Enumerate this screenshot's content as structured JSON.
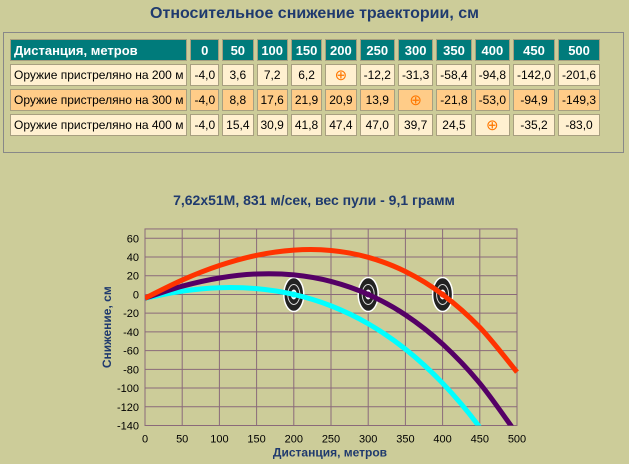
{
  "title": "Относительное снижение траектории, см",
  "table": {
    "header": "Дистанция, метров",
    "distances": [
      "0",
      "50",
      "100",
      "150",
      "200",
      "250",
      "300",
      "350",
      "400",
      "450",
      "500"
    ],
    "rows": [
      {
        "label": "Оружие пристреляно на 200 м",
        "values": [
          "-4,0",
          "3,6",
          "7,2",
          "6,2",
          "⊕",
          "-12,2",
          "-31,3",
          "-58,4",
          "-94,8",
          "-142,0",
          "-201,6"
        ]
      },
      {
        "label": "Оружие пристреляно на 300 м",
        "values": [
          "-4,0",
          "8,8",
          "17,6",
          "21,9",
          "20,9",
          "13,9",
          "⊕",
          "-21,8",
          "-53,0",
          "-94,9",
          "-149,3"
        ]
      },
      {
        "label": "Оружие пристреляно на 400 м",
        "values": [
          "-4,0",
          "15,4",
          "30,9",
          "41,8",
          "47,4",
          "47,0",
          "39,7",
          "24,5",
          "⊕",
          "-35,2",
          "-83,0"
        ]
      }
    ]
  },
  "chart_data": {
    "type": "line",
    "title": "7,62x51M, 831 м/сек, вес пули - 9,1 грамм",
    "xlabel": "Дистанция, метров",
    "ylabel": "Снижение, см",
    "xlim": [
      0,
      500
    ],
    "ylim": [
      -140,
      70
    ],
    "xticks": [
      "0",
      "50",
      "100",
      "150",
      "200",
      "250",
      "300",
      "350",
      "400",
      "450",
      "500"
    ],
    "yticks": [
      "60",
      "40",
      "20",
      "0",
      "-20",
      "-40",
      "-60",
      "-80",
      "-100",
      "-120",
      "-140"
    ],
    "x": [
      0,
      50,
      100,
      150,
      200,
      250,
      300,
      350,
      400,
      450,
      500
    ],
    "series": [
      {
        "name": "200 м",
        "color": "#00ffff",
        "values": [
          -4,
          3.6,
          7.2,
          6.2,
          0,
          -12.2,
          -31.3,
          -58.4,
          -94.8,
          -142,
          -201.6
        ],
        "target": 200
      },
      {
        "name": "300 м",
        "color": "#550066",
        "values": [
          -4,
          8.8,
          17.6,
          21.9,
          20.9,
          13.9,
          0,
          -21.8,
          -53,
          -94.9,
          -149.3
        ],
        "target": 300
      },
      {
        "name": "400 м",
        "color": "#ff3300",
        "values": [
          -4,
          15.4,
          30.9,
          41.8,
          47.4,
          47,
          39.7,
          24.5,
          0,
          -35.2,
          -83
        ],
        "target": 400
      }
    ],
    "grid": true
  }
}
